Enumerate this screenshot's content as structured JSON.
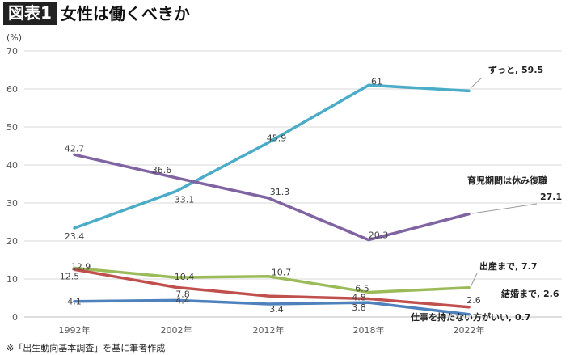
{
  "header": {
    "badge": "図表1",
    "title": "女性は働くべきか"
  },
  "footnote": "※「出生動向基本調査」を基に筆者作成",
  "chart_data": {
    "type": "line",
    "unit_label": "(%)",
    "categories": [
      "1992年",
      "2002年",
      "2012年",
      "2018年",
      "2022年"
    ],
    "ylim": [
      0,
      70
    ],
    "yticks": [
      0,
      10,
      20,
      30,
      40,
      50,
      60,
      70
    ],
    "grid": true,
    "series": [
      {
        "name": "ずっと",
        "values": [
          23.4,
          33.1,
          45.9,
          61,
          59.5
        ],
        "color": "#4aacc6",
        "value_labels": [
          "23.4",
          "33.1",
          "45.9",
          "61",
          ""
        ],
        "end_label": "ずっと, 59.5"
      },
      {
        "name": "育児期間は休み復職",
        "values": [
          42.7,
          36.6,
          31.3,
          20.3,
          27.1
        ],
        "color": "#8064a2",
        "value_labels": [
          "42.7",
          "36.6",
          "31.3",
          "20.3",
          ""
        ],
        "end_label": [
          "育児期間は休み復職",
          "27.1"
        ]
      },
      {
        "name": "出産まで",
        "values": [
          12.9,
          10.4,
          10.7,
          6.5,
          7.7
        ],
        "color": "#9bbb59",
        "value_labels": [
          "12.9",
          "10.4",
          "10.7",
          "6.5",
          ""
        ],
        "end_label": "出産まで, 7.7"
      },
      {
        "name": "結婚まで",
        "values": [
          12.5,
          7.8,
          5.5,
          4.8,
          2.6
        ],
        "color": "#c0504d",
        "value_labels": [
          "12.5",
          "7.8",
          "",
          "4.8",
          "2.6"
        ],
        "end_label": "結婚まで, 2.6"
      },
      {
        "name": "仕事を持たない方がいい",
        "values": [
          4.1,
          4.4,
          3.4,
          3.8,
          0.7
        ],
        "color": "#4f81bd",
        "value_labels": [
          "4.1",
          "4.4",
          "3.4",
          "3.8",
          ""
        ],
        "end_label": "仕事を持たない方がいい, 0.7"
      }
    ]
  }
}
